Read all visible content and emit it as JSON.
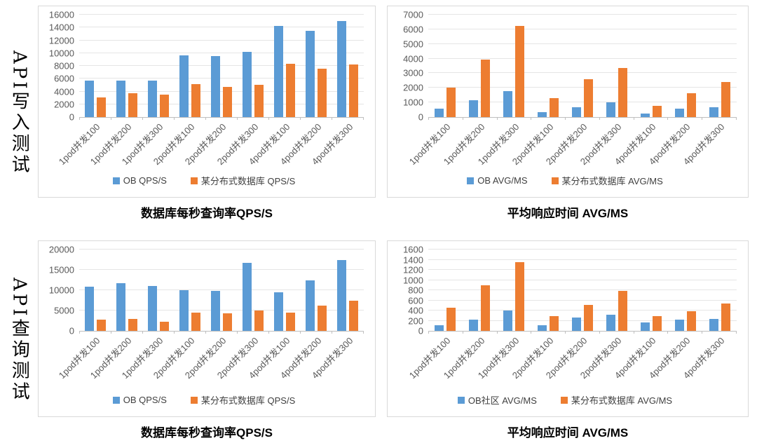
{
  "sections": [
    {
      "side_title": "API写入测试"
    },
    {
      "side_title": "API查询测试"
    }
  ],
  "colors": {
    "ob_blue": "#5B9BD5",
    "other_db_orange": "#ED7D31",
    "gridline": "#E5E5E5",
    "axis_line": "#BFBFBF",
    "tick_label": "#595959"
  },
  "chart_data": [
    {
      "type": "bar",
      "section": "API写入测试",
      "title": "数据库每秒查询率QPS/S",
      "categories": [
        "1pod并发100",
        "1pod并发200",
        "1pod并发300",
        "2pod并发100",
        "2pod并发200",
        "2pod并发300",
        "4pod并发100",
        "4pod并发200",
        "4pod并发300"
      ],
      "series": [
        {
          "name": "OB QPS/S",
          "color": "#5B9BD5",
          "values": [
            5700,
            5700,
            5700,
            9700,
            9550,
            10200,
            14300,
            13500,
            15000
          ]
        },
        {
          "name": "某分布式数据库 QPS/S",
          "color": "#ED7D31",
          "values": [
            3100,
            3750,
            3500,
            5100,
            4750,
            5050,
            8350,
            7550,
            8200
          ]
        }
      ],
      "ylim": [
        0,
        16000
      ],
      "ytick_step": 2000,
      "grid": true,
      "legend_position": "bottom"
    },
    {
      "type": "bar",
      "section": "API写入测试",
      "title": "平均响应时间 AVG/MS",
      "categories": [
        "1pod并发100",
        "1pod并发200",
        "1pod并发300",
        "2pod并发100",
        "2pod并发200",
        "2pod并发300",
        "4pod并发100",
        "4pod并发200",
        "4pod并发300"
      ],
      "series": [
        {
          "name": "OB AVG/MS",
          "color": "#5B9BD5",
          "values": [
            560,
            1150,
            1780,
            330,
            660,
            1030,
            240,
            580,
            690
          ]
        },
        {
          "name": "某分布式数据库 AVG/MS",
          "color": "#ED7D31",
          "values": [
            2000,
            3950,
            6230,
            1280,
            2570,
            3380,
            760,
            1650,
            2380
          ]
        }
      ],
      "ylim": [
        0,
        7000
      ],
      "ytick_step": 1000,
      "grid": true,
      "legend_position": "bottom"
    },
    {
      "type": "bar",
      "section": "API查询测试",
      "title": "数据库每秒查询率QPS/S",
      "categories": [
        "1pod并发100",
        "1pod并发200",
        "1pod并发300",
        "2pod并发100",
        "2pod并发200",
        "2pod并发300",
        "4pod并发100",
        "4pod并发200",
        "4pod并发300"
      ],
      "series": [
        {
          "name": "OB QPS/S",
          "color": "#5B9BD5",
          "values": [
            10800,
            11700,
            11000,
            10000,
            9800,
            16700,
            9500,
            12500,
            17400
          ]
        },
        {
          "name": "某分布式数据库 QPS/S",
          "color": "#ED7D31",
          "values": [
            2700,
            2900,
            2200,
            4400,
            4350,
            5050,
            4500,
            6250,
            7400
          ]
        }
      ],
      "ylim": [
        0,
        20000
      ],
      "ytick_step": 5000,
      "grid": true,
      "legend_position": "bottom"
    },
    {
      "type": "bar",
      "section": "API查询测试",
      "title": "平均响应时间 AVG/MS",
      "categories": [
        "1pod并发100",
        "1pod并发200",
        "1pod并发300",
        "2pod并发100",
        "2pod并发200",
        "2pod并发300",
        "4pod并发100",
        "4pod并发200",
        "4pod并发300"
      ],
      "series": [
        {
          "name": "OB社区 AVG/MS",
          "color": "#5B9BD5",
          "values": [
            115,
            225,
            395,
            110,
            258,
            315,
            165,
            225,
            230
          ]
        },
        {
          "name": "某分布式数据库 AVG/MS",
          "color": "#ED7D31",
          "values": [
            450,
            900,
            1355,
            285,
            515,
            790,
            295,
            380,
            535
          ]
        }
      ],
      "ylim": [
        0,
        1600
      ],
      "ytick_step": 200,
      "grid": true,
      "legend_position": "bottom"
    }
  ]
}
